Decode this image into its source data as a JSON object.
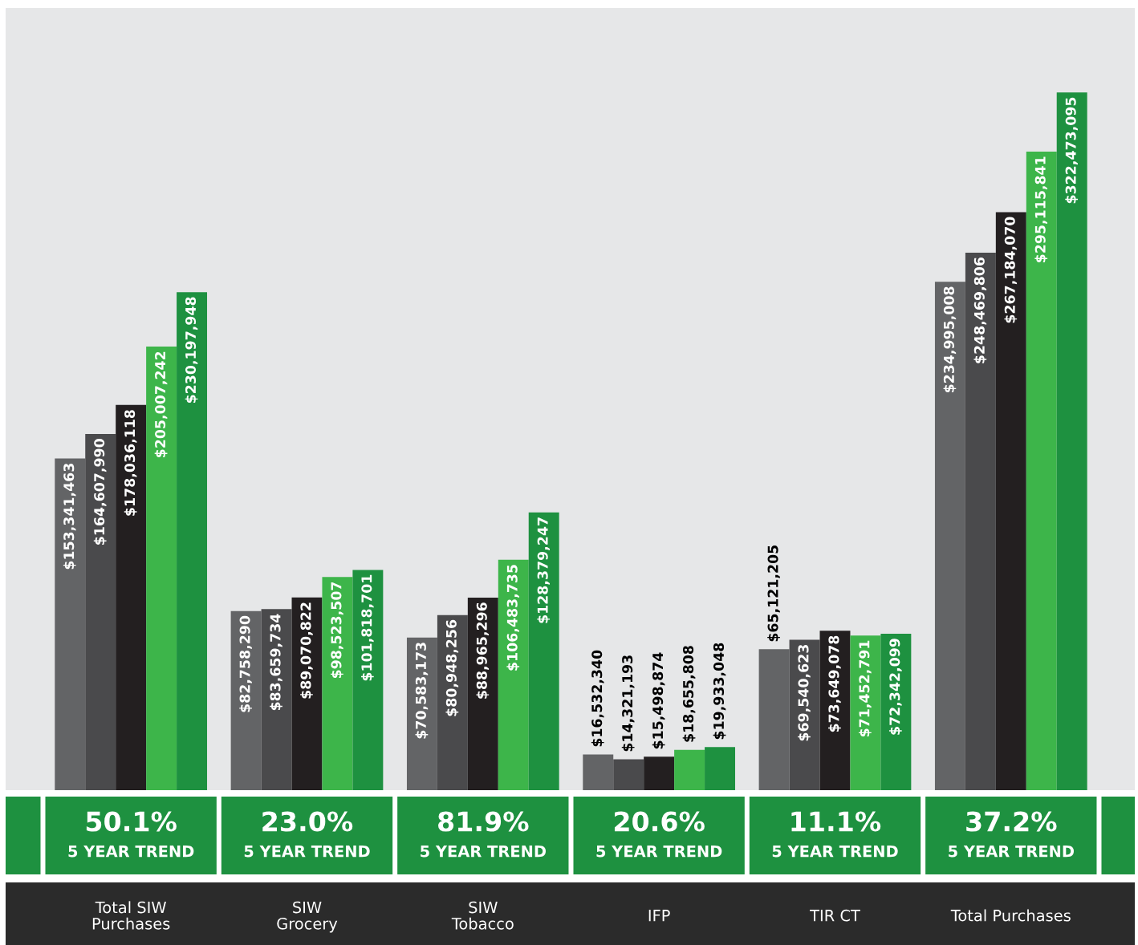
{
  "chart_data": {
    "type": "bar",
    "categories": [
      "Total SIW\nPurchases",
      "SIW\nGrocery",
      "SIW\nTobacco",
      "IFP",
      "TIR CT",
      "Total Purchases"
    ],
    "series": [
      {
        "color": "#636466",
        "values": [
          153341463,
          82758290,
          70583173,
          16532340,
          65121205,
          234995008
        ],
        "value_labels": [
          "$153,341,463",
          "$82,758,290",
          "$70,583,173",
          "$16,532,340",
          "$65,121,205",
          "$234,995,008"
        ]
      },
      {
        "color": "#4a4a4c",
        "values": [
          164607990,
          83659734,
          80948256,
          14321193,
          69540623,
          248469806
        ],
        "value_labels": [
          "$164,607,990",
          "$83,659,734",
          "$80,948,256",
          "$14,321,193",
          "$69,540,623",
          "$248,469,806"
        ]
      },
      {
        "color": "#231f20",
        "values": [
          178036118,
          89070822,
          88965296,
          15498874,
          73649078,
          267184070
        ],
        "value_labels": [
          "$178,036,118",
          "$89,070,822",
          "$88,965,296",
          "$15,498,874",
          "$73,649,078",
          "$267,184,070"
        ]
      },
      {
        "color": "#3db54a",
        "values": [
          205007242,
          98523507,
          106483735,
          18655808,
          71452791,
          295115841
        ],
        "value_labels": [
          "$205,007,242",
          "$98,523,507",
          "$106,483,735",
          "$18,655,808",
          "$71,452,791",
          "$295,115,841"
        ]
      },
      {
        "color": "#1e9140",
        "values": [
          230197948,
          101818701,
          128379247,
          19933048,
          72342099,
          322473095
        ],
        "value_labels": [
          "$230,197,948",
          "$101,818,701",
          "$128,379,247",
          "$19,933,048",
          "$72,342,099",
          "$322,473,095"
        ]
      }
    ],
    "annotations": [
      "50.1%",
      "5 YEAR TREND",
      "23.0%",
      "5 YEAR TREND",
      "81.9%",
      "5 YEAR TREND",
      "20.6%",
      "5 YEAR TREND",
      "11.1%",
      "5 YEAR TREND",
      "37.2%",
      "5 YEAR TREND"
    ],
    "legend": false
  }
}
